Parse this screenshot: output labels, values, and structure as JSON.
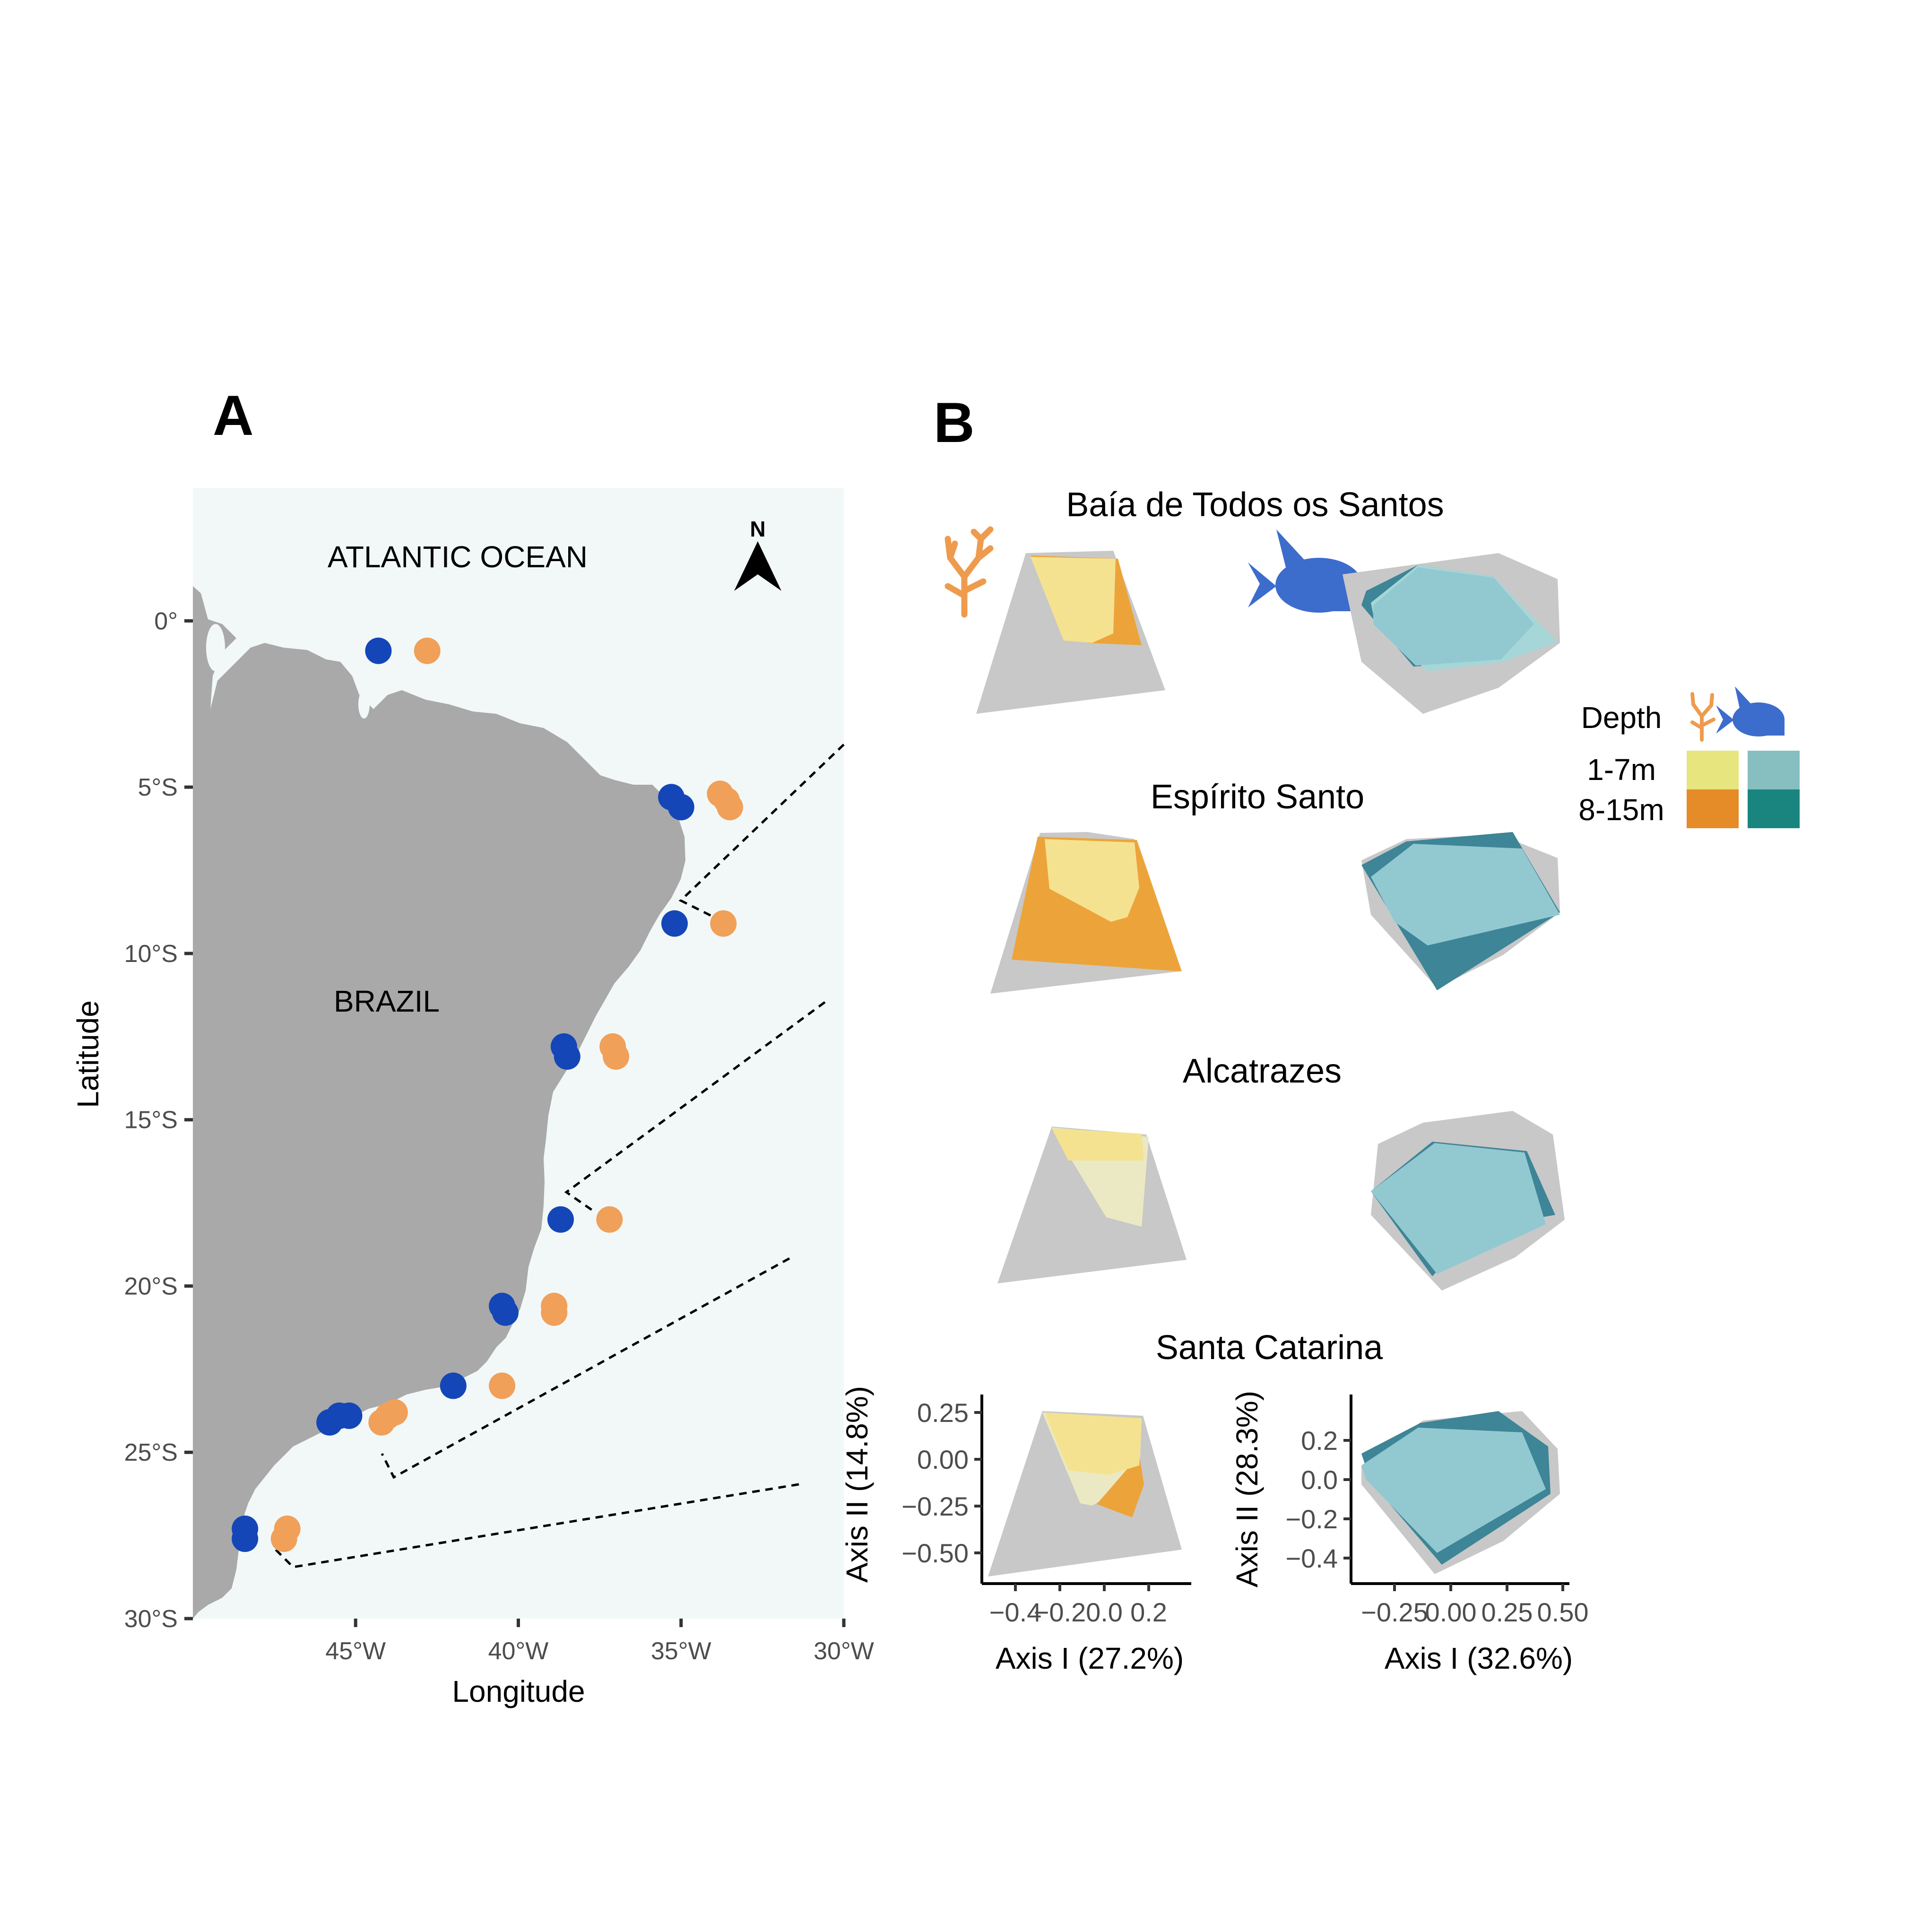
{
  "panel_a": {
    "label": "A",
    "ocean_label": "ATLANTIC OCEAN",
    "country_label": "BRAZIL",
    "north_label": "N",
    "xlabel": "Longitude",
    "ylabel": "Latitude",
    "x_ticks": [
      "45°W",
      "40°W",
      "35°W",
      "30°W"
    ],
    "y_ticks": [
      "0°",
      "5°S",
      "10°S",
      "15°S",
      "20°S",
      "25°S",
      "30°S"
    ],
    "colors": {
      "ocean": "#f2f8f8",
      "land": "#a9a9a9",
      "benthic": "#f0a059",
      "fish": "#1446b8"
    }
  },
  "panel_b": {
    "label": "B",
    "legend": {
      "title": "Depth",
      "rows": [
        "1-7m",
        "8-15m"
      ]
    },
    "sites": [
      "Baía de Todos os Santos",
      "Espírito Santo",
      "Alcatrazes",
      "Santa Catarina"
    ],
    "axes": {
      "benthic": {
        "xlabel": "Axis I (27.2%)",
        "ylabel": "Axis II (14.8%)",
        "x_ticks": [
          "−0.4",
          "−0.2",
          "0.0",
          "0.2"
        ],
        "y_ticks": [
          "0.25",
          "0.00",
          "−0.25",
          "−0.50"
        ]
      },
      "fish": {
        "xlabel": "Axis I (32.6%)",
        "ylabel": "Axis II (28.3%)",
        "x_ticks": [
          "−0.25",
          "0.00",
          "0.25",
          "0.50"
        ],
        "y_ticks": [
          "0.2",
          "0.0",
          "−0.2",
          "−0.4"
        ]
      }
    },
    "colors": {
      "overall": "#c8c8c8",
      "benthic_shallow": "#f5e290",
      "benthic_deep": "#eca43a",
      "fish_shallow": "#a6d6d8",
      "fish_deep": "#3d8597",
      "fish_mid": "#92c9d1",
      "legend_benthic_shallow": "#e6e57e",
      "legend_benthic_deep": "#e58b28",
      "legend_fish_shallow": "#87bfc0",
      "legend_fish_deep": "#1a857f"
    }
  },
  "chart_data": {
    "type": "scatter",
    "xlabel": "Longitude",
    "ylabel": "Latitude",
    "xlim": [
      -50,
      -30
    ],
    "ylim": [
      -30,
      4
    ],
    "series": [
      {
        "name": "",
        "points": [
          [
            -44.3,
            -0.9
          ],
          [
            -35.3,
            -5.3
          ],
          [
            -35.0,
            -5.6
          ],
          [
            -35.2,
            -9.1
          ],
          [
            -38.6,
            -12.8
          ],
          [
            -38.5,
            -13.1
          ],
          [
            -38.7,
            -18.0
          ],
          [
            -40.5,
            -20.6
          ],
          [
            -40.4,
            -20.8
          ],
          [
            -42.0,
            -23.0
          ],
          [
            -45.2,
            -23.9
          ],
          [
            -45.5,
            -23.9
          ],
          [
            -45.8,
            -24.1
          ],
          [
            -48.4,
            -27.3
          ],
          [
            -48.4,
            -27.6
          ]
        ]
      },
      {
        "name": "",
        "points": [
          [
            -42.8,
            -0.9
          ],
          [
            -33.8,
            -5.2
          ],
          [
            -33.6,
            -5.4
          ],
          [
            -33.5,
            -5.6
          ],
          [
            -33.7,
            -9.1
          ],
          [
            -37.1,
            -12.8
          ],
          [
            -37.0,
            -13.1
          ],
          [
            -37.2,
            -18.0
          ],
          [
            -38.9,
            -20.6
          ],
          [
            -38.9,
            -20.8
          ],
          [
            -40.5,
            -23.0
          ],
          [
            -43.8,
            -23.8
          ],
          [
            -44.0,
            -23.9
          ],
          [
            -44.2,
            -24.1
          ],
          [
            -47.1,
            -27.3
          ],
          [
            -47.2,
            -27.6
          ]
        ]
      }
    ]
  }
}
